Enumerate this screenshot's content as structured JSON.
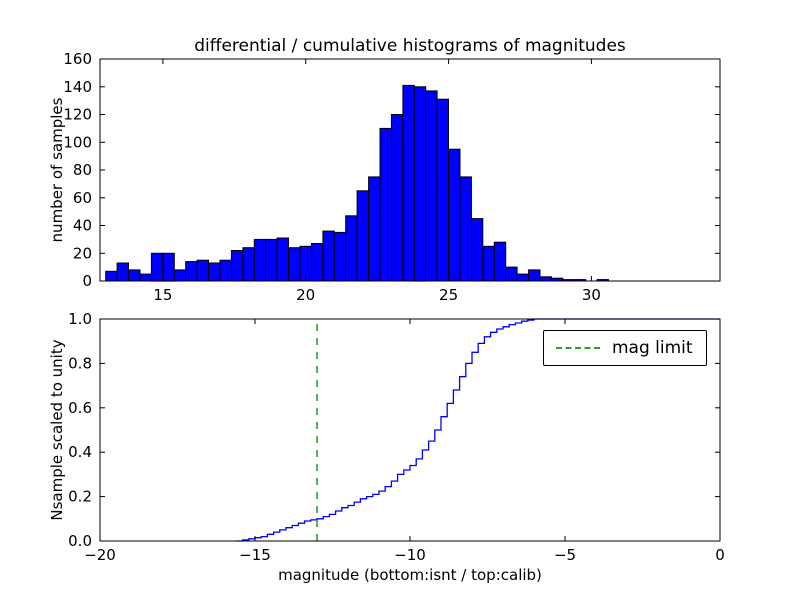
{
  "figure": {
    "title": "differential / cumulative histograms of magnitudes",
    "xlabel": "magnitude (bottom:isnt / top:calib)",
    "background": "#ffffff",
    "text_color": "#000000"
  },
  "chart_data": [
    {
      "type": "bar",
      "name": "differential-histogram",
      "ylabel": "number of samples",
      "bar_color": "#0000ff",
      "bar_edge_color": "#000000",
      "bin_start": 13.0,
      "bin_width": 0.4,
      "values": [
        7,
        13,
        8,
        5,
        20,
        20,
        8,
        14,
        15,
        13,
        15,
        22,
        24,
        30,
        30,
        31,
        24,
        25,
        27,
        36,
        35,
        47,
        65,
        75,
        110,
        120,
        141,
        140,
        137,
        131,
        95,
        75,
        45,
        25,
        28,
        10,
        5,
        8,
        3,
        2,
        1,
        1,
        0,
        1,
        0
      ],
      "xlim": [
        12.8,
        34.5
      ],
      "ylim": [
        0,
        160
      ],
      "xticks": {
        "values": [
          15,
          20,
          25,
          30
        ],
        "labels": [
          "15",
          "20",
          "25",
          "30"
        ]
      },
      "yticks": {
        "values": [
          0,
          20,
          40,
          60,
          80,
          100,
          120,
          140,
          160
        ],
        "labels": [
          "0",
          "20",
          "40",
          "60",
          "80",
          "100",
          "120",
          "140",
          "160"
        ]
      },
      "grid": false
    },
    {
      "type": "line",
      "name": "cumulative-histogram",
      "ylabel": "Nsample scaled to unity",
      "line_color": "#0000ff",
      "step": true,
      "x": [
        -15.6,
        -15.4,
        -15.2,
        -15.0,
        -14.8,
        -14.6,
        -14.4,
        -14.2,
        -14.0,
        -13.8,
        -13.6,
        -13.4,
        -13.2,
        -13.0,
        -12.8,
        -12.6,
        -12.4,
        -12.2,
        -12.0,
        -11.8,
        -11.6,
        -11.4,
        -11.2,
        -11.0,
        -10.8,
        -10.6,
        -10.4,
        -10.2,
        -10.0,
        -9.8,
        -9.6,
        -9.4,
        -9.2,
        -9.0,
        -8.8,
        -8.6,
        -8.4,
        -8.2,
        -8.0,
        -7.8,
        -7.6,
        -7.4,
        -7.2,
        -7.0,
        -6.8,
        -6.6,
        -6.4,
        -6.2,
        -6.0,
        0.0
      ],
      "y": [
        0.0,
        0.005,
        0.01,
        0.015,
        0.02,
        0.03,
        0.04,
        0.05,
        0.06,
        0.07,
        0.08,
        0.09,
        0.095,
        0.1,
        0.11,
        0.12,
        0.135,
        0.15,
        0.16,
        0.175,
        0.19,
        0.2,
        0.21,
        0.225,
        0.245,
        0.27,
        0.3,
        0.32,
        0.34,
        0.37,
        0.41,
        0.45,
        0.5,
        0.56,
        0.62,
        0.68,
        0.74,
        0.8,
        0.85,
        0.89,
        0.92,
        0.94,
        0.955,
        0.965,
        0.975,
        0.982,
        0.99,
        0.995,
        1.0,
        1.0
      ],
      "xlim": [
        -20,
        0
      ],
      "ylim": [
        0.0,
        1.0
      ],
      "xticks": {
        "values": [
          -20,
          -15,
          -10,
          -5,
          0
        ],
        "labels": [
          "−20",
          "−15",
          "−10",
          "−5",
          "0"
        ]
      },
      "yticks": {
        "values": [
          0.0,
          0.2,
          0.4,
          0.6,
          0.8,
          1.0
        ],
        "labels": [
          "0.0",
          "0.2",
          "0.4",
          "0.6",
          "0.8",
          "1.0"
        ]
      },
      "mag_limit_line": {
        "x": -13,
        "color": "#2ca02c",
        "style": "dashed"
      },
      "legend": {
        "label": "mag limit",
        "position": "upper right"
      },
      "grid": false
    }
  ]
}
